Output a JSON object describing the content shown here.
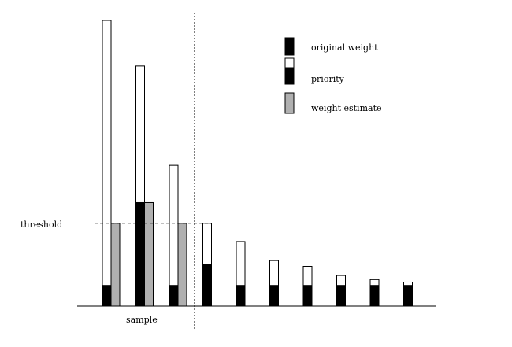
{
  "chart_data": {
    "type": "bar",
    "xlabel": "sample",
    "threshold_label": "threshold",
    "threshold": 1.0,
    "legend": {
      "placement": "top-right",
      "entries": [
        {
          "key": "original",
          "label": "original weight"
        },
        {
          "key": "priority",
          "label": "priority"
        },
        {
          "key": "estimate",
          "label": "weight estimate"
        }
      ]
    },
    "colors": {
      "original": "#000000",
      "priority_fill": "#ffffff",
      "estimate": "#b0b0b0",
      "stroke": "#000000"
    },
    "ylim": [
      0,
      3.5
    ],
    "items": [
      {
        "priority": 3.45,
        "weight": 0.25,
        "estimate": 1.0,
        "in_sample": true
      },
      {
        "priority": 2.9,
        "weight": 1.25,
        "estimate": 1.25,
        "in_sample": true
      },
      {
        "priority": 1.7,
        "weight": 0.25,
        "estimate": 1.0,
        "in_sample": true
      },
      {
        "priority": 1.0,
        "weight": 0.5,
        "estimate": null,
        "in_sample": false
      },
      {
        "priority": 0.78,
        "weight": 0.25,
        "estimate": null,
        "in_sample": false
      },
      {
        "priority": 0.55,
        "weight": 0.25,
        "estimate": null,
        "in_sample": false
      },
      {
        "priority": 0.48,
        "weight": 0.25,
        "estimate": null,
        "in_sample": false
      },
      {
        "priority": 0.37,
        "weight": 0.25,
        "estimate": null,
        "in_sample": false
      },
      {
        "priority": 0.32,
        "weight": 0.25,
        "estimate": null,
        "in_sample": false
      },
      {
        "priority": 0.29,
        "weight": 0.25,
        "estimate": null,
        "in_sample": false
      }
    ]
  }
}
